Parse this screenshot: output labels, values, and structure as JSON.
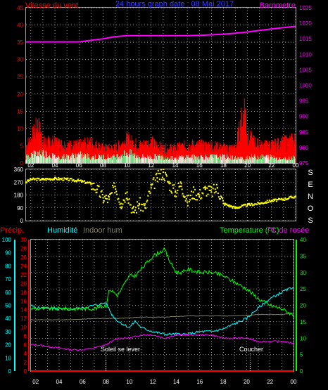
{
  "colors": {
    "wind": "#ff0000",
    "gust": "#ff0000",
    "baro": "#ff00ff",
    "title": "#3a3aff",
    "direction": "#ffff00",
    "precip": "#ff0000",
    "humidity": "#00ffff",
    "indoor": "#808060",
    "temperature": "#00ff00",
    "dewpoint": "#ff00ff",
    "grid": "#ffffff",
    "frame": "#9a9a9a",
    "white": "#ffffff"
  },
  "chart_data": [
    {
      "type": "line",
      "title": "24 hours graph date : 08 Mai 2017",
      "left_label": "Vitesse du vent",
      "right_label": "Barometre",
      "x_ticks": [
        "02",
        "03",
        "04",
        "05",
        "06",
        "07",
        "08",
        "09",
        "10",
        "11",
        "12",
        "13",
        "14",
        "15",
        "16",
        "17",
        "18",
        "19",
        "20",
        "21",
        "22",
        "23",
        "00"
      ],
      "x_tick_labels": [
        "02",
        "04",
        "06",
        "08",
        "10",
        "12",
        "14",
        "16",
        "18",
        "20",
        "22",
        "00"
      ],
      "y_left_ticks": [
        "0",
        "5",
        "10",
        "15",
        "20",
        "25",
        "30",
        "35",
        "40",
        "45"
      ],
      "y_right_ticks": [
        "975",
        "980",
        "985",
        "990",
        "995",
        "1000",
        "1005",
        "1010",
        "1015",
        "1020",
        "1025"
      ],
      "ylim_left": [
        0,
        45
      ],
      "ylim_right": [
        975,
        1025
      ],
      "series": [
        {
          "name": "Barometre",
          "x": [
            1.6,
            3,
            4,
            5,
            6,
            7,
            8,
            9,
            10,
            11,
            12,
            13,
            14,
            15,
            16,
            17,
            18,
            19,
            20,
            21,
            22,
            23,
            24
          ],
          "values": [
            1014,
            1014,
            1014,
            1014,
            1014,
            1014.5,
            1015,
            1015.7,
            1016,
            1016,
            1016,
            1016,
            1016,
            1016,
            1016.1,
            1016.3,
            1016.5,
            1016.8,
            1017.2,
            1017.7,
            1018.2,
            1018.6,
            1019
          ]
        },
        {
          "name": "Vitesse du vent",
          "x": [
            1.6,
            2,
            3,
            4,
            5,
            6,
            7,
            8,
            9,
            10,
            11,
            12,
            13,
            14,
            15,
            16,
            17,
            18,
            19,
            19.8,
            20,
            21,
            22,
            23,
            24
          ],
          "values": [
            3,
            4,
            5,
            3,
            3,
            4,
            3,
            3,
            3,
            5,
            3,
            3,
            3,
            2.5,
            3,
            3,
            3,
            3,
            2.5,
            2,
            3,
            3,
            3,
            2,
            3
          ]
        },
        {
          "name": "Rafales",
          "x": [
            1.6,
            2,
            2.6,
            3,
            4,
            5,
            6,
            7,
            8,
            9,
            10,
            11,
            12,
            13,
            14,
            15,
            16,
            17,
            18,
            19,
            19.8,
            20,
            21,
            22,
            23,
            24
          ],
          "values": [
            6,
            8,
            13,
            7,
            7,
            6,
            6,
            7,
            5,
            5,
            8,
            6,
            7,
            5,
            5,
            6,
            6,
            6,
            5,
            5,
            20,
            9,
            6,
            6,
            7,
            8
          ]
        }
      ]
    },
    {
      "type": "scatter",
      "title": "Direction du vent",
      "y_ticks": [
        "0",
        "90",
        "180",
        "270",
        "360"
      ],
      "compass_labels": [
        "S",
        "E",
        "N",
        "O",
        "S"
      ],
      "ylim": [
        0,
        360
      ],
      "series": [
        {
          "name": "Direction",
          "x": [
            1.6,
            2,
            3,
            4,
            5,
            6,
            7,
            7.5,
            8,
            8.5,
            9,
            9.5,
            10,
            10.5,
            11,
            11.5,
            12,
            12.5,
            13,
            13.5,
            14,
            14.5,
            15,
            15.5,
            16,
            16.5,
            17,
            17.5,
            18,
            19,
            20,
            21,
            22,
            23,
            24
          ],
          "values": [
            270,
            290,
            290,
            295,
            290,
            280,
            260,
            220,
            160,
            150,
            240,
            120,
            200,
            60,
            120,
            90,
            230,
            300,
            340,
            260,
            200,
            260,
            130,
            200,
            180,
            220,
            200,
            230,
            120,
            90,
            110,
            120,
            140,
            150,
            170
          ]
        }
      ]
    },
    {
      "type": "line",
      "legend": [
        "Précip.",
        "Humidité",
        "Indoor hum",
        "Temperature (°C)",
        "Pt. de rosée"
      ],
      "x_ticks": [
        "02",
        "03",
        "04",
        "05",
        "06",
        "07",
        "08",
        "09",
        "10",
        "11",
        "12",
        "13",
        "14",
        "15",
        "16",
        "17",
        "18",
        "19",
        "20",
        "21",
        "22",
        "23",
        "00"
      ],
      "x_tick_labels": [
        "02",
        "04",
        "06",
        "08",
        "10",
        "12",
        "14",
        "16",
        "18",
        "20",
        "22",
        "00"
      ],
      "y_humidity_ticks": [
        "0",
        "10",
        "20",
        "30",
        "40",
        "50",
        "60",
        "70",
        "80",
        "90",
        "100"
      ],
      "y_precip_ticks": [
        "0",
        "2",
        "4",
        "6",
        "8",
        "10",
        "12",
        "14",
        "16",
        "18",
        "20",
        "22",
        "24",
        "26",
        "28",
        "30"
      ],
      "y_temp_ticks": [
        "0",
        "5",
        "10",
        "15",
        "20",
        "25",
        "30",
        "35",
        "40"
      ],
      "ylim_humidity": [
        0,
        100
      ],
      "ylim_precip": [
        0,
        30
      ],
      "ylim_temp": [
        0,
        40
      ],
      "annotations": [
        "Soleil se lever",
        "Coucher"
      ],
      "series": [
        {
          "name": "Temperature (°C)",
          "x": [
            1.6,
            2,
            3,
            4,
            5,
            6,
            7,
            8,
            8.3,
            9,
            10,
            10.5,
            11,
            12,
            12.5,
            13,
            13.5,
            14,
            14.5,
            15,
            16,
            17,
            18,
            19,
            20,
            21,
            22,
            23,
            24
          ],
          "values": [
            19,
            19,
            19,
            19,
            19,
            19,
            19,
            20,
            25,
            23,
            29,
            29,
            31,
            35,
            36,
            37,
            33,
            30,
            30,
            31,
            30,
            30,
            29,
            27,
            25,
            22,
            20,
            19,
            17
          ]
        },
        {
          "name": "Humidité",
          "x": [
            1.6,
            2,
            3,
            4,
            5,
            6,
            7,
            8,
            8.5,
            9,
            10,
            10.5,
            11,
            12,
            13,
            14,
            15,
            16,
            17,
            18,
            19,
            20,
            21,
            22,
            23,
            24
          ],
          "values": [
            50,
            48,
            48,
            47,
            47,
            48,
            50,
            52,
            43,
            38,
            33,
            38,
            33,
            30,
            28,
            28,
            28,
            30,
            30,
            32,
            36,
            40,
            48,
            55,
            60,
            64
          ]
        },
        {
          "name": "Indoor hum",
          "x": [
            1.6,
            3,
            5,
            7,
            9,
            11,
            13,
            15,
            17,
            19,
            21,
            23,
            24
          ],
          "values": [
            39,
            39,
            39,
            40,
            40,
            41,
            41,
            42,
            42,
            42,
            43,
            43,
            44
          ]
        },
        {
          "name": "Pt. de rosée",
          "x": [
            1.6,
            2,
            3,
            4,
            5,
            6,
            7,
            8,
            9,
            10,
            11,
            12,
            13,
            14,
            15,
            16,
            17,
            18,
            19,
            20,
            21,
            22,
            23,
            24
          ],
          "values": [
            8,
            8,
            7.5,
            7,
            6.5,
            6.5,
            7,
            8,
            10,
            10,
            11,
            11,
            10,
            11,
            11,
            11,
            11,
            10,
            10,
            10,
            9,
            9,
            9,
            8.5
          ]
        },
        {
          "name": "Précip.",
          "x": [
            1.6,
            24
          ],
          "values": [
            0,
            0
          ]
        }
      ]
    }
  ]
}
